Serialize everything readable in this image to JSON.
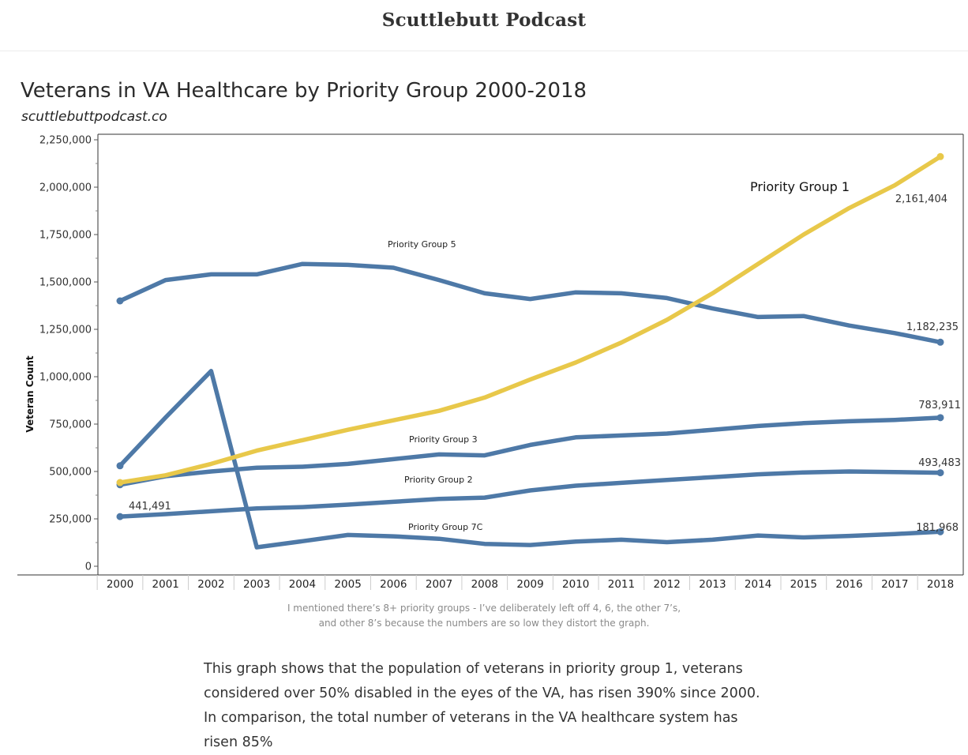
{
  "site": {
    "title": "Scuttlebutt Podcast"
  },
  "chart_data": {
    "type": "line",
    "title": "Veterans in VA Healthcare by Priority Group 2000-2018",
    "subtitle": "scuttlebuttpodcast.co",
    "xlabel": "",
    "ylabel": "Veteran Count",
    "ylim": [
      0,
      2250000
    ],
    "yticks": [
      0,
      250000,
      500000,
      750000,
      1000000,
      1250000,
      1500000,
      1750000,
      2000000,
      2250000
    ],
    "ytick_labels": [
      "0",
      "250,000",
      "500,000",
      "750,000",
      "1,000,000",
      "1,250,000",
      "1,500,000",
      "1,750,000",
      "2,000,000",
      "2,250,000"
    ],
    "x": [
      "2000",
      "2001",
      "2002",
      "2003",
      "2004",
      "2005",
      "2006",
      "2007",
      "2008",
      "2009",
      "2010",
      "2011",
      "2012",
      "2013",
      "2014",
      "2015",
      "2016",
      "2017",
      "2018"
    ],
    "grid": false,
    "series": [
      {
        "name": "Priority Group 1",
        "color": "#e8c84a",
        "values": [
          441491,
          480000,
          540000,
          610000,
          665000,
          720000,
          770000,
          820000,
          890000,
          985000,
          1075000,
          1180000,
          1300000,
          1440000,
          1595000,
          1750000,
          1890000,
          2010000,
          2161404
        ],
        "start_label": "441,491",
        "end_label": "2,161,404"
      },
      {
        "name": "Priority Group 5",
        "color": "#4e79a7",
        "values": [
          1400000,
          1510000,
          1540000,
          1540000,
          1595000,
          1590000,
          1575000,
          1510000,
          1440000,
          1410000,
          1445000,
          1440000,
          1415000,
          1360000,
          1315000,
          1320000,
          1270000,
          1230000,
          1182235
        ],
        "end_label": "1,182,235"
      },
      {
        "name": "Priority Group 3",
        "color": "#4e79a7",
        "values": [
          430000,
          475000,
          500000,
          520000,
          525000,
          540000,
          565000,
          590000,
          585000,
          640000,
          680000,
          690000,
          700000,
          720000,
          740000,
          755000,
          765000,
          772000,
          783911
        ],
        "end_label": "783,911"
      },
      {
        "name": "Priority Group 2",
        "color": "#4e79a7",
        "values": [
          262000,
          275000,
          290000,
          305000,
          312000,
          325000,
          340000,
          355000,
          362000,
          400000,
          425000,
          440000,
          455000,
          470000,
          485000,
          495000,
          500000,
          497000,
          493483
        ],
        "end_label": "493,483"
      },
      {
        "name": "Priority Group 7C",
        "color": "#4e79a7",
        "values": [
          530000,
          785000,
          1030000,
          100000,
          132000,
          165000,
          158000,
          145000,
          118000,
          112000,
          130000,
          140000,
          127000,
          140000,
          162000,
          152000,
          160000,
          170000,
          181968
        ],
        "end_label": "181,968"
      }
    ]
  },
  "caption": {
    "line1": "I mentioned there’s 8+ priority groups - I’ve deliberately left off 4, 6, the other 7’s,",
    "line2": "and other 8’s because the numbers are so low they distort the graph."
  },
  "body": {
    "paragraph": "This graph shows that the population of veterans in priority group 1, veterans considered over 50% disabled in the eyes of the VA, has risen 390% since 2000. In comparison, the total number of veterans in the VA healthcare system has risen 85%"
  }
}
